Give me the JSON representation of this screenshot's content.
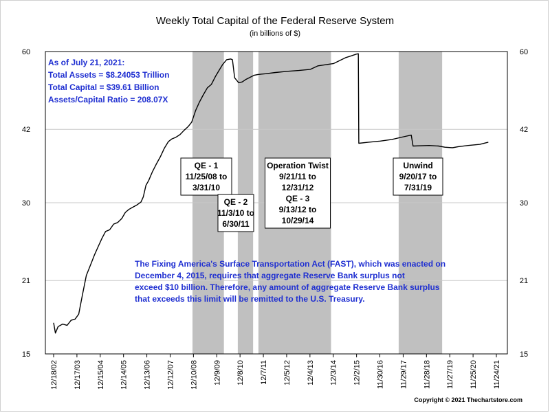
{
  "chart_data": {
    "type": "line",
    "title": "Weekly Total Capital of the Federal Reserve System",
    "subtitle": "(in billions of $)",
    "y_ticks": [
      15,
      21,
      30,
      42,
      60
    ],
    "ylim": [
      15,
      60
    ],
    "y_scale": "log",
    "x_ticks": [
      "12/18/02",
      "12/17/03",
      "12/15/04",
      "12/14/05",
      "12/13/06",
      "12/12/07",
      "12/10/08",
      "12/9/09",
      "12/8/10",
      "12/7/11",
      "12/5/12",
      "12/4/13",
      "12/3/14",
      "12/2/15",
      "11/30/16",
      "11/29/17",
      "11/28/18",
      "11/27/19",
      "11/25/20",
      "11/24/21"
    ],
    "xlim": [
      "2002-12-18",
      "2021-11-24"
    ],
    "grid": "horizontal",
    "series": [
      {
        "points": [
          [
            "2002-12-18",
            17.3
          ],
          [
            "2003-01-15",
            16.5
          ],
          [
            "2003-02-26",
            17.0
          ],
          [
            "2003-05-07",
            17.2
          ],
          [
            "2003-07-16",
            17.1
          ],
          [
            "2003-09-17",
            17.5
          ],
          [
            "2003-11-19",
            17.6
          ],
          [
            "2004-01-14",
            18.0
          ],
          [
            "2004-03-10",
            19.6
          ],
          [
            "2004-05-12",
            21.5
          ],
          [
            "2004-07-14",
            22.5
          ],
          [
            "2004-09-15",
            23.6
          ],
          [
            "2004-11-17",
            24.6
          ],
          [
            "2005-01-12",
            25.5
          ],
          [
            "2005-03-09",
            26.3
          ],
          [
            "2005-05-11",
            26.5
          ],
          [
            "2005-07-13",
            27.2
          ],
          [
            "2005-09-14",
            27.4
          ],
          [
            "2005-11-16",
            27.9
          ],
          [
            "2006-01-11",
            28.7
          ],
          [
            "2006-03-08",
            29.1
          ],
          [
            "2006-05-10",
            29.4
          ],
          [
            "2006-07-12",
            29.7
          ],
          [
            "2006-09-13",
            30.1
          ],
          [
            "2006-10-18",
            30.8
          ],
          [
            "2006-11-29",
            32.5
          ],
          [
            "2007-01-10",
            33.2
          ],
          [
            "2007-03-07",
            34.5
          ],
          [
            "2007-05-09",
            35.8
          ],
          [
            "2007-07-11",
            37.0
          ],
          [
            "2007-09-12",
            38.5
          ],
          [
            "2007-11-14",
            39.7
          ],
          [
            "2008-01-09",
            40.2
          ],
          [
            "2008-03-12",
            40.5
          ],
          [
            "2008-05-14",
            41.0
          ],
          [
            "2008-07-16",
            41.8
          ],
          [
            "2008-09-17",
            42.5
          ],
          [
            "2008-11-12",
            43.4
          ],
          [
            "2009-01-14",
            45.8
          ],
          [
            "2009-03-11",
            47.5
          ],
          [
            "2009-05-13",
            49.2
          ],
          [
            "2009-07-15",
            50.8
          ],
          [
            "2009-09-16",
            51.6
          ],
          [
            "2009-11-18",
            53.5
          ],
          [
            "2010-01-13",
            55.0
          ],
          [
            "2010-03-10",
            56.5
          ],
          [
            "2010-05-12",
            57.8
          ],
          [
            "2010-07-14",
            58.0
          ],
          [
            "2010-08-11",
            57.8
          ],
          [
            "2010-09-15",
            53.2
          ],
          [
            "2010-11-17",
            52.0
          ],
          [
            "2011-01-12",
            52.2
          ],
          [
            "2011-03-09",
            52.8
          ],
          [
            "2011-05-11",
            53.3
          ],
          [
            "2011-07-13",
            53.8
          ],
          [
            "2011-09-14",
            54.0
          ],
          [
            "2012-01-11",
            54.2
          ],
          [
            "2012-06-13",
            54.5
          ],
          [
            "2012-12-12",
            54.8
          ],
          [
            "2013-06-12",
            55.0
          ],
          [
            "2013-12-11",
            55.3
          ],
          [
            "2014-04-09",
            56.2
          ],
          [
            "2014-12-10",
            56.8
          ],
          [
            "2015-06-10",
            58.3
          ],
          [
            "2015-12-02",
            59.3
          ],
          [
            "2015-12-30",
            59.4
          ],
          [
            "2016-01-06",
            39.4
          ],
          [
            "2016-06-08",
            39.6
          ],
          [
            "2016-12-07",
            39.8
          ],
          [
            "2017-06-07",
            40.1
          ],
          [
            "2017-12-06",
            40.6
          ],
          [
            "2018-04-04",
            40.9
          ],
          [
            "2018-05-02",
            38.9
          ],
          [
            "2019-01-09",
            39.0
          ],
          [
            "2019-06-05",
            38.9
          ],
          [
            "2019-09-11",
            38.7
          ],
          [
            "2020-01-08",
            38.6
          ],
          [
            "2020-04-08",
            38.8
          ],
          [
            "2020-09-09",
            39.0
          ],
          [
            "2021-03-10",
            39.2
          ],
          [
            "2021-07-21",
            39.6
          ]
        ]
      }
    ],
    "shaded_periods": [
      {
        "start": "2008-11-25",
        "end": "2010-03-31",
        "label_lines": [
          "QE - 1",
          "11/25/08 to",
          "3/31/10"
        ]
      },
      {
        "start": "2010-11-03",
        "end": "2011-06-30",
        "label_lines": [
          "QE - 2",
          "11/3/10 to",
          "6/30/11"
        ]
      },
      {
        "start": "2011-09-21",
        "end": "2014-10-29",
        "label_lines": [
          "Operation Twist",
          "9/21/11 to",
          "12/31/12",
          "QE - 3",
          "9/13/12 to",
          "10/29/14"
        ]
      },
      {
        "start": "2017-09-20",
        "end": "2019-07-31",
        "label_lines": [
          "Unwind",
          "9/20/17 to",
          "7/31/19"
        ]
      }
    ],
    "annotations": {
      "status_lines": [
        "As of July 21, 2021:",
        "Total Assets = $8.24053 Trillion",
        "Total Capital  = $39.61 Billion",
        "Assets/Capital Ratio = 208.07X"
      ],
      "note_lines": [
        "The Fixing America's Surface Transportation Act (FAST), which was enacted on",
        "December 4, 2015, requires that aggregate Reserve Bank surplus not",
        "exceed $10 billion.  Therefore, any amount of aggregate Reserve Bank surplus",
        "that exceeds this limit will be remitted to the U.S. Treasury."
      ]
    },
    "copyright": "Copyright © 2021 Thechartstore.com",
    "colors": {
      "line": "#000000",
      "shade": "#c0c0c0",
      "note_text": "#1f2fd1",
      "grid": "#c8c8c8"
    }
  }
}
